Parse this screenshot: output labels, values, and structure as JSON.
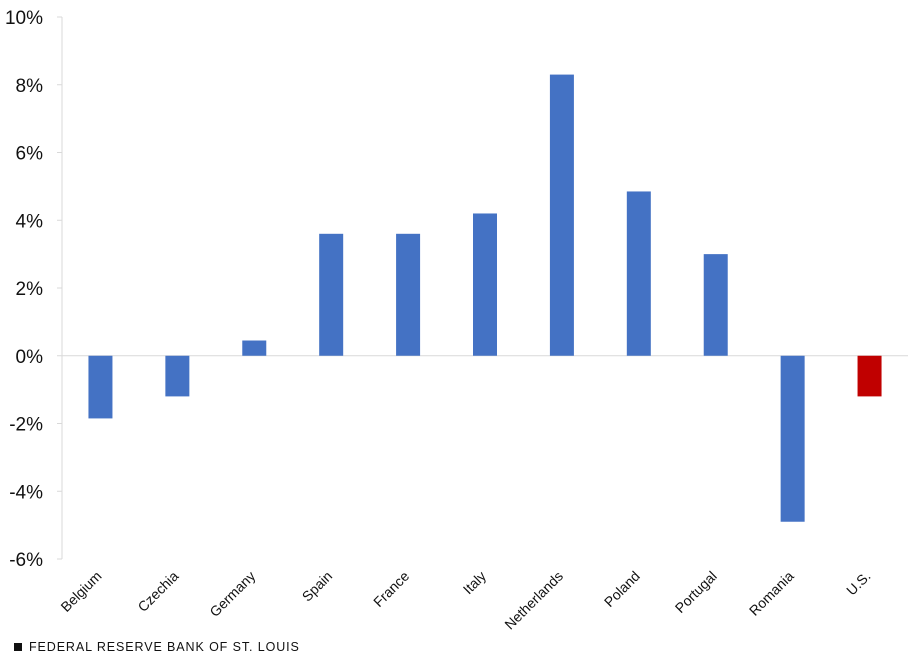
{
  "chart_data": {
    "type": "bar",
    "title": "",
    "xlabel": "",
    "ylabel": "",
    "categories": [
      "Belgium",
      "Czechia",
      "Germany",
      "Spain",
      "France",
      "Italy",
      "Netherlands",
      "Poland",
      "Portugal",
      "Romania",
      "U.S."
    ],
    "values": [
      -1.85,
      -1.2,
      0.45,
      3.6,
      3.6,
      4.2,
      8.3,
      4.85,
      3.0,
      -4.9,
      -1.2
    ],
    "ylim": [
      -6,
      10
    ],
    "yticks": [
      -6,
      -4,
      -2,
      0,
      2,
      4,
      6,
      8,
      10
    ],
    "ytick_labels": [
      "-6%",
      "-4%",
      "-2%",
      "0%",
      "2%",
      "4%",
      "6%",
      "8%",
      "10%"
    ],
    "grid": false,
    "colors": {
      "default": "#4472C4",
      "highlight": "#C00000",
      "axis": "#d9d9d9"
    },
    "highlight_category": "U.S."
  },
  "footer": {
    "source": "FEDERAL RESERVE BANK OF ST. LOUIS"
  }
}
